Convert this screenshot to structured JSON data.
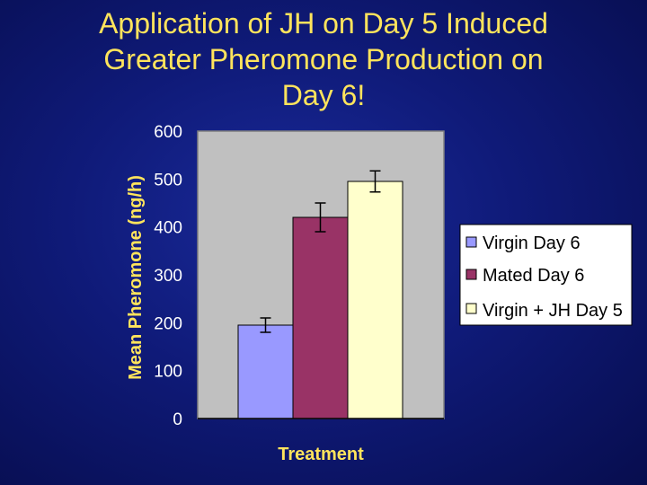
{
  "slide": {
    "title_lines": [
      "Application of JH on Day 5 Induced",
      "Greater Pheromone Production on",
      "Day 6!"
    ]
  },
  "colors": {
    "background": "#0f1a78",
    "title": "#ffe45c",
    "plot_area": "#c0c0c0"
  },
  "chart_data": {
    "type": "bar",
    "title": "Application of JH on Day 5 Induced Greater Pheromone Production on Day 6!",
    "xlabel": "Treatment",
    "ylabel": "Mean Pheromone (ng/h)",
    "ylim": [
      0,
      600
    ],
    "yticks": [
      0,
      100,
      200,
      300,
      400,
      500,
      600
    ],
    "grid": false,
    "legend_position": "right",
    "series": [
      {
        "name": "Virgin Day 6",
        "value": 195,
        "error": 15,
        "color": "#9999ff"
      },
      {
        "name": "Mated Day 6",
        "value": 420,
        "error": 30,
        "color": "#993366"
      },
      {
        "name": "Virgin + JH Day 5",
        "value": 495,
        "error": 22,
        "color": "#ffffcc"
      }
    ]
  }
}
